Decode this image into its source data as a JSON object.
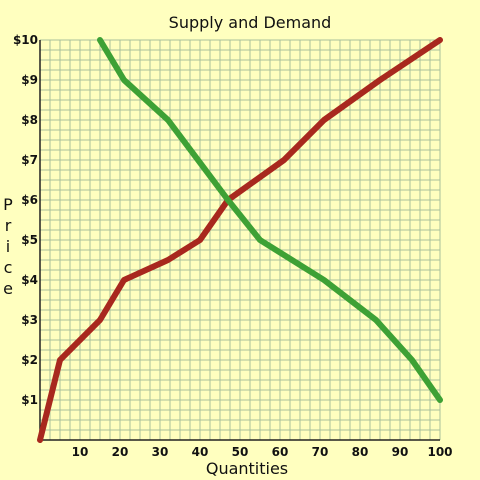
{
  "chart_data": {
    "type": "line",
    "title": "Supply and Demand",
    "xlabel": "Quantities",
    "ylabel": "Price",
    "xlim": [
      0,
      100
    ],
    "ylim": [
      0,
      10
    ],
    "x_tick_labels": [
      "10",
      "20",
      "30",
      "40",
      "50",
      "60",
      "70",
      "80",
      "90",
      "100"
    ],
    "y_tick_labels": [
      "$1",
      "$2",
      "$3",
      "$4",
      "$5",
      "$6",
      "$7",
      "$8",
      "$9",
      "$10"
    ],
    "grid": true,
    "series": [
      {
        "color": "#A8281E",
        "x": [
          0,
          5,
          15,
          21,
          32,
          40,
          47,
          61,
          71,
          85,
          100
        ],
        "y": [
          0,
          2,
          3,
          4,
          4.5,
          5,
          6,
          7,
          8,
          9,
          10
        ]
      },
      {
        "color": "#3EA135",
        "x": [
          15,
          21,
          32,
          47,
          55,
          71,
          84,
          93,
          100
        ],
        "y": [
          10,
          9,
          8,
          6,
          5,
          4,
          3,
          2,
          1
        ]
      }
    ]
  },
  "colors": {
    "background": "#FFFFBF",
    "grid": "#A9C19B",
    "axis": "#222222"
  }
}
